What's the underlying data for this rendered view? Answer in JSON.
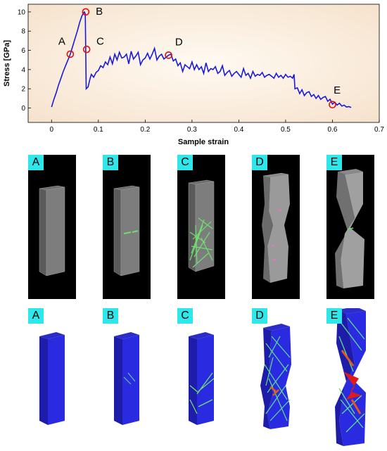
{
  "chart_data": {
    "type": "line",
    "xlabel": "Sample strain",
    "ylabel": "Stress [GPa]",
    "xlim": [
      -0.05,
      0.7
    ],
    "ylim": [
      -1.5,
      10.8
    ],
    "xticks": [
      "0",
      "0.1",
      "0.2",
      "0.3",
      "0.4",
      "0.5",
      "0.6",
      "0.7"
    ],
    "yticks": [
      "0",
      "2",
      "4",
      "6",
      "8",
      "10"
    ],
    "grid": false,
    "series": [
      {
        "x": [
          0,
          0.005,
          0.01,
          0.015,
          0.02,
          0.025,
          0.03,
          0.035,
          0.04,
          0.045,
          0.05,
          0.055,
          0.06,
          0.065,
          0.07,
          0.072,
          0.074,
          0.078,
          0.082,
          0.085,
          0.09,
          0.095,
          0.1,
          0.105,
          0.11,
          0.115,
          0.12,
          0.125,
          0.13,
          0.135,
          0.14,
          0.145,
          0.15,
          0.155,
          0.16,
          0.165,
          0.17,
          0.175,
          0.18,
          0.185,
          0.19,
          0.195,
          0.2,
          0.205,
          0.21,
          0.215,
          0.22,
          0.225,
          0.23,
          0.235,
          0.24,
          0.245,
          0.25,
          0.255,
          0.26,
          0.265,
          0.27,
          0.275,
          0.28,
          0.285,
          0.29,
          0.295,
          0.3,
          0.305,
          0.31,
          0.315,
          0.32,
          0.325,
          0.33,
          0.335,
          0.34,
          0.345,
          0.35,
          0.355,
          0.36,
          0.365,
          0.37,
          0.375,
          0.38,
          0.385,
          0.39,
          0.395,
          0.4,
          0.405,
          0.41,
          0.415,
          0.42,
          0.425,
          0.43,
          0.435,
          0.44,
          0.445,
          0.45,
          0.455,
          0.46,
          0.465,
          0.47,
          0.475,
          0.48,
          0.485,
          0.49,
          0.495,
          0.5,
          0.505,
          0.51,
          0.515,
          0.518,
          0.52,
          0.525,
          0.53,
          0.535,
          0.54,
          0.545,
          0.55,
          0.555,
          0.56,
          0.565,
          0.57,
          0.575,
          0.58,
          0.585,
          0.59,
          0.595,
          0.6,
          0.605,
          0.61,
          0.615,
          0.62,
          0.625,
          0.63,
          0.635,
          0.64
        ],
        "y": [
          0.1,
          0.9,
          1.6,
          2.4,
          3.1,
          3.8,
          4.4,
          5.0,
          5.6,
          6.4,
          7.2,
          8.0,
          8.9,
          9.6,
          10.0,
          9.8,
          2.0,
          2.2,
          3.0,
          3.5,
          3.2,
          3.7,
          3.9,
          4.4,
          4.2,
          4.8,
          4.5,
          5.3,
          4.6,
          5.6,
          5.0,
          5.8,
          5.2,
          5.3,
          5.6,
          4.6,
          5.9,
          5.1,
          5.4,
          5.8,
          4.5,
          5.0,
          5.2,
          5.7,
          5.1,
          5.6,
          6.2,
          5.0,
          5.4,
          5.6,
          5.1,
          5.3,
          5.5,
          5.6,
          4.9,
          5.1,
          4.4,
          4.7,
          3.8,
          4.5,
          4.3,
          4.1,
          4.8,
          4.0,
          4.5,
          4.0,
          4.3,
          3.6,
          4.7,
          3.8,
          4.1,
          4.0,
          4.3,
          3.6,
          3.8,
          4.4,
          3.4,
          3.7,
          3.9,
          3.3,
          3.6,
          3.8,
          3.5,
          3.2,
          4.1,
          3.4,
          3.6,
          3.1,
          3.8,
          3.3,
          3.5,
          3.4,
          3.7,
          3.2,
          3.4,
          3.5,
          3.3,
          3.1,
          3.6,
          3.2,
          3.4,
          3.1,
          3.5,
          3.2,
          3.3,
          3.1,
          3.5,
          2.0,
          2.1,
          1.5,
          1.9,
          1.3,
          1.6,
          1.7,
          1.2,
          1.4,
          1.0,
          1.3,
          0.9,
          1.1,
          1.2,
          0.7,
          0.9,
          0.4,
          0.6,
          0.3,
          0.5,
          0.2,
          0.3,
          0.1,
          0.15,
          0.05
        ]
      }
    ],
    "markers": [
      {
        "label": "A",
        "x": 0.04,
        "y": 5.6,
        "lx": 0.022,
        "ly": 6.6
      },
      {
        "label": "B",
        "x": 0.073,
        "y": 10.0,
        "lx": 0.102,
        "ly": 9.7
      },
      {
        "label": "C",
        "x": 0.075,
        "y": 6.1,
        "lx": 0.104,
        "ly": 6.6
      },
      {
        "label": "D",
        "x": 0.25,
        "y": 5.5,
        "lx": 0.272,
        "ly": 6.5
      },
      {
        "label": "E",
        "x": 0.6,
        "y": 0.35,
        "lx": 0.61,
        "ly": 1.5
      }
    ]
  },
  "row1_labels": [
    "A",
    "B",
    "C",
    "D",
    "E"
  ],
  "row2_labels": [
    "A",
    "B",
    "C",
    "D",
    "E"
  ]
}
